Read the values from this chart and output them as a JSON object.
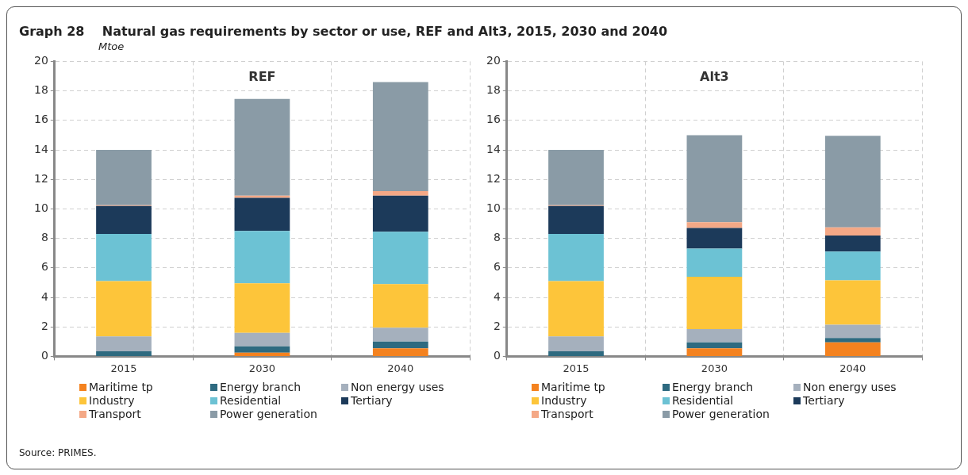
{
  "chart_data": [
    {
      "type": "other",
      "title": "Graph 28    Natural gas requirements by sector or use, REF and Alt3, 2015, 2030 and 2040",
      "subtitle": "Mtoe",
      "annotations": [
        "Source: PRIMES."
      ]
    },
    {
      "type": "bar",
      "title": "REF",
      "stacked": true,
      "categories": [
        "2015",
        "2030",
        "2040"
      ],
      "ylim": [
        0,
        20
      ],
      "yticks": [
        0,
        2,
        4,
        6,
        8,
        10,
        12,
        14,
        16,
        18,
        20
      ],
      "grid": true,
      "legend": "bottom",
      "line_style": "dashed",
      "series": [
        {
          "name": "Maritime tp",
          "color": "#f4821f",
          "values": [
            0,
            0.25,
            0.55
          ]
        },
        {
          "name": "Energy branch",
          "color": "#2e6a80",
          "values": [
            0.35,
            0.43,
            0.45
          ]
        },
        {
          "name": "Non energy uses",
          "color": "#a5b0bd",
          "values": [
            1.0,
            0.92,
            0.95
          ]
        },
        {
          "name": "Industry",
          "color": "#fdc53a",
          "values": [
            3.75,
            3.35,
            2.95
          ]
        },
        {
          "name": "Residential",
          "color": "#6cc2d4",
          "values": [
            3.2,
            3.55,
            3.55
          ]
        },
        {
          "name": "Tertiary",
          "color": "#1c3a5a",
          "values": [
            1.9,
            2.25,
            2.45
          ]
        },
        {
          "name": "Transport",
          "color": "#f4a886",
          "values": [
            0.05,
            0.15,
            0.3
          ]
        },
        {
          "name": "Power generation",
          "color": "#8a9ba6",
          "values": [
            3.75,
            6.55,
            7.4
          ]
        }
      ]
    },
    {
      "type": "bar",
      "title": "Alt3",
      "stacked": true,
      "categories": [
        "2015",
        "2030",
        "2040"
      ],
      "ylim": [
        0,
        20
      ],
      "yticks": [
        0,
        2,
        4,
        6,
        8,
        10,
        12,
        14,
        16,
        18,
        20
      ],
      "grid": true,
      "legend": "bottom",
      "line_style": "dashed",
      "series": [
        {
          "name": "Maritime tp",
          "color": "#f4821f",
          "values": [
            0,
            0.55,
            0.95
          ]
        },
        {
          "name": "Energy branch",
          "color": "#2e6a80",
          "values": [
            0.35,
            0.4,
            0.3
          ]
        },
        {
          "name": "Non energy uses",
          "color": "#a5b0bd",
          "values": [
            1.0,
            0.9,
            0.9
          ]
        },
        {
          "name": "Industry",
          "color": "#fdc53a",
          "values": [
            3.75,
            3.55,
            3.0
          ]
        },
        {
          "name": "Residential",
          "color": "#6cc2d4",
          "values": [
            3.2,
            1.9,
            1.95
          ]
        },
        {
          "name": "Tertiary",
          "color": "#1c3a5a",
          "values": [
            1.9,
            1.4,
            1.1
          ]
        },
        {
          "name": "Transport",
          "color": "#f4a886",
          "values": [
            0.05,
            0.4,
            0.55
          ]
        },
        {
          "name": "Power generation",
          "color": "#8a9ba6",
          "values": [
            3.75,
            5.9,
            6.2
          ]
        }
      ]
    }
  ]
}
